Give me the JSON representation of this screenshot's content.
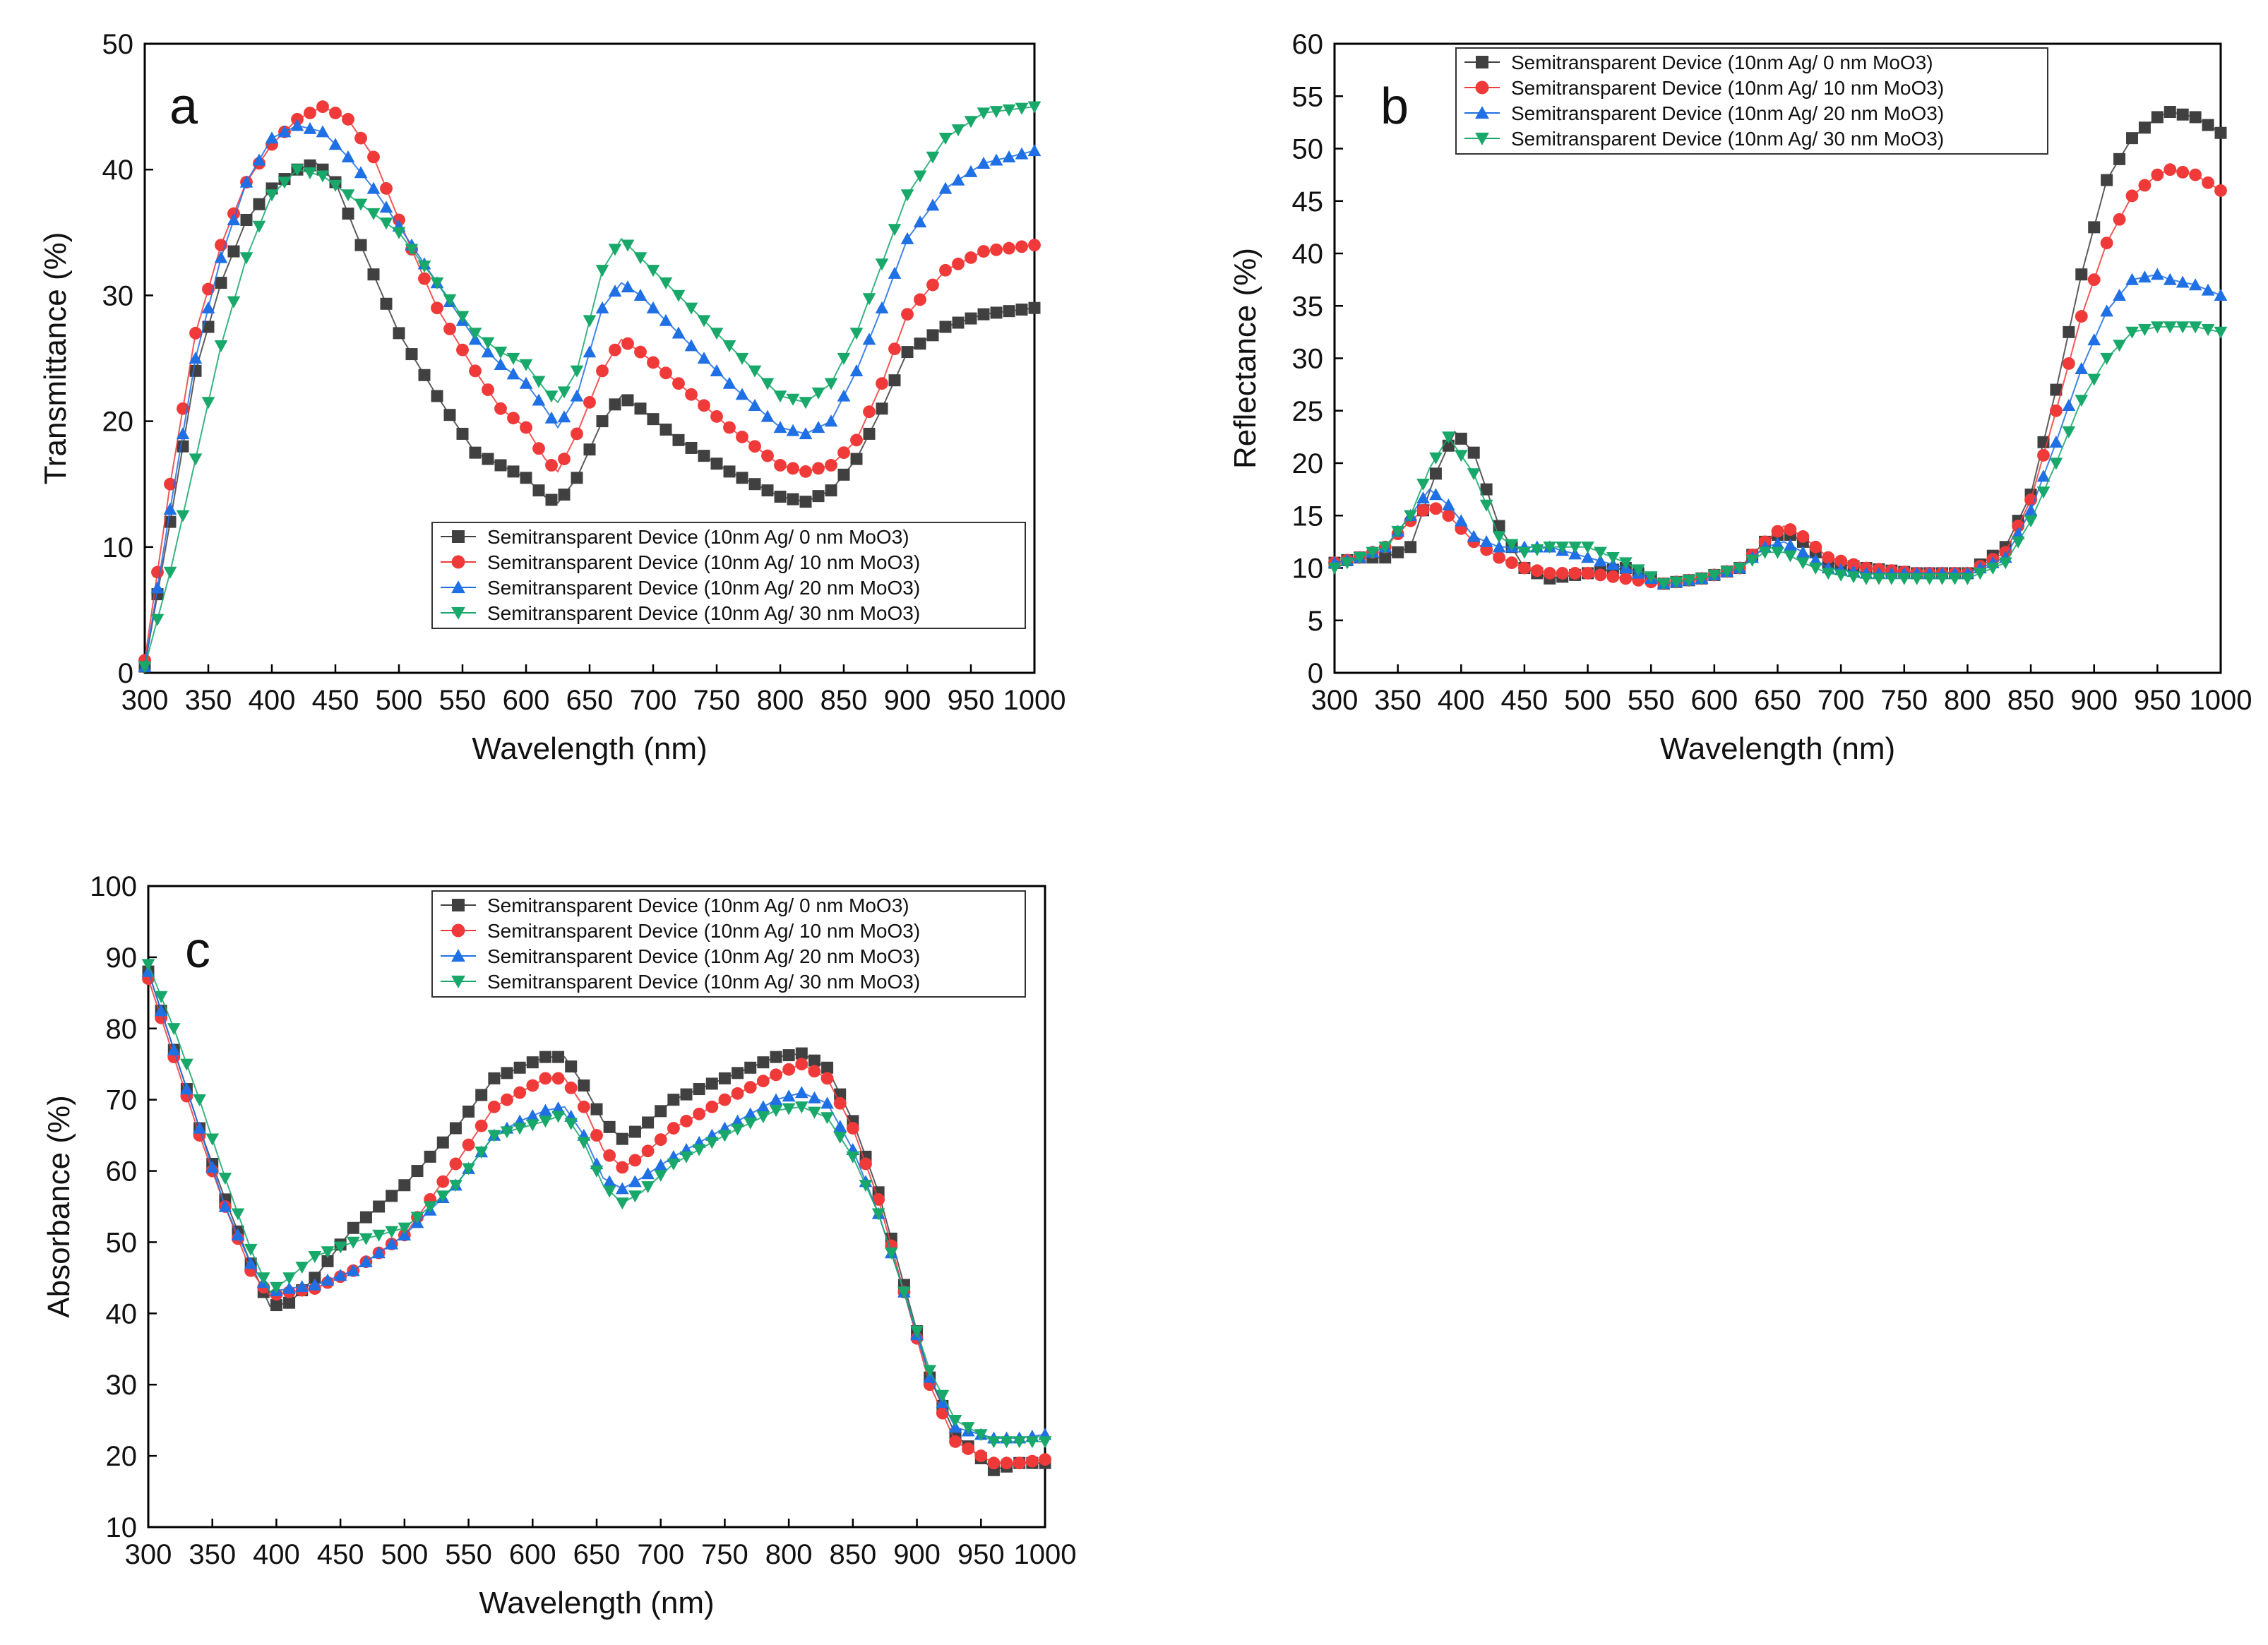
{
  "figure": {
    "colors": {
      "s0": "#404040",
      "s10": "#f03a3a",
      "s20": "#1f6fe5",
      "s30": "#17a86a"
    }
  },
  "legend_labels": [
    "Semitransparent Device (10nm Ag/ 0 nm MoO3)",
    "Semitransparent Device (10nm Ag/ 10 nm MoO3)",
    "Semitransparent Device (10nm Ag/ 20 nm MoO3)",
    "Semitransparent Device (10nm Ag/ 30 nm MoO3)"
  ],
  "chart_data": [
    {
      "id": "a",
      "type": "scatter",
      "panel_label": "a",
      "xlabel": "Wavelength (nm)",
      "ylabel": "Transmittance (%)",
      "xlim": [
        300,
        1000
      ],
      "ylim": [
        0,
        50
      ],
      "xticks": [
        300,
        350,
        400,
        450,
        500,
        550,
        600,
        650,
        700,
        750,
        800,
        850,
        900,
        950,
        1000
      ],
      "yticks": [
        0,
        10,
        20,
        30,
        40,
        50
      ],
      "legend_position": "lower-right",
      "series": [
        {
          "name": "Semitransparent Device (10nm Ag/ 0 nm MoO3)",
          "marker": "square",
          "color": "#404040",
          "x": [
            300,
            320,
            340,
            360,
            380,
            400,
            420,
            435,
            450,
            470,
            500,
            530,
            560,
            580,
            600,
            615,
            625,
            640,
            660,
            675,
            690,
            720,
            760,
            800,
            820,
            840,
            860,
            880,
            900,
            930,
            960,
            1000
          ],
          "y": [
            0.5,
            12,
            24,
            31,
            36,
            38.5,
            40,
            40.5,
            39,
            34,
            27,
            22,
            17.5,
            16.5,
            15.5,
            14,
            13.5,
            15.5,
            20,
            22,
            21,
            18.5,
            16,
            14,
            13.6,
            14.5,
            17,
            21,
            25.5,
            27.5,
            28.5,
            29
          ]
        },
        {
          "name": "Semitransparent Device (10nm Ag/ 10 nm MoO3)",
          "marker": "circle",
          "color": "#f03a3a",
          "x": [
            300,
            320,
            340,
            360,
            380,
            400,
            420,
            440,
            460,
            480,
            500,
            530,
            560,
            580,
            600,
            615,
            625,
            640,
            660,
            675,
            690,
            720,
            760,
            800,
            820,
            840,
            860,
            880,
            900,
            930,
            960,
            1000
          ],
          "y": [
            1,
            15,
            27,
            34,
            39,
            42,
            44,
            45,
            44,
            41,
            36,
            29,
            24,
            21,
            19.5,
            17,
            16,
            19,
            24,
            26.5,
            25.5,
            23,
            19.5,
            16.5,
            16,
            16.5,
            18.5,
            23,
            28.5,
            32,
            33.5,
            34
          ]
        },
        {
          "name": "Semitransparent Device (10nm Ag/ 20 nm MoO3)",
          "marker": "triangle-up",
          "color": "#1f6fe5",
          "x": [
            300,
            320,
            340,
            360,
            380,
            400,
            420,
            440,
            460,
            480,
            500,
            530,
            560,
            580,
            600,
            615,
            625,
            640,
            660,
            675,
            690,
            720,
            760,
            800,
            820,
            840,
            860,
            880,
            900,
            930,
            960,
            1000
          ],
          "y": [
            0.5,
            13,
            25,
            33,
            39,
            42.5,
            43.5,
            43,
            41,
            38.5,
            35.5,
            31,
            26.5,
            24.5,
            23,
            21,
            19.5,
            22,
            29,
            31,
            30,
            27,
            23,
            19.5,
            19,
            20,
            24,
            29,
            34.5,
            38.5,
            40.5,
            41.5
          ]
        },
        {
          "name": "Semitransparent Device (10nm Ag/ 30 nm MoO3)",
          "marker": "triangle-down",
          "color": "#17a86a",
          "x": [
            300,
            320,
            340,
            360,
            380,
            400,
            420,
            440,
            460,
            480,
            500,
            530,
            560,
            580,
            600,
            615,
            625,
            640,
            660,
            675,
            690,
            720,
            760,
            800,
            820,
            840,
            860,
            880,
            900,
            930,
            960,
            1000
          ],
          "y": [
            0.5,
            8,
            17,
            26,
            33,
            38,
            40,
            39.5,
            38,
            36.5,
            35,
            31,
            27,
            25.5,
            24.5,
            22.5,
            21.5,
            24,
            32,
            34.5,
            33,
            30,
            26,
            22,
            21.5,
            23,
            27,
            32.5,
            38,
            42.5,
            44.5,
            45
          ]
        }
      ]
    },
    {
      "id": "b",
      "type": "scatter",
      "panel_label": "b",
      "xlabel": "Wavelength (nm)",
      "ylabel": "Reflectance (%)",
      "xlim": [
        300,
        1000
      ],
      "ylim": [
        0,
        60
      ],
      "xticks": [
        300,
        350,
        400,
        450,
        500,
        550,
        600,
        650,
        700,
        750,
        800,
        850,
        900,
        950,
        1000
      ],
      "yticks": [
        0,
        5,
        10,
        15,
        20,
        25,
        30,
        35,
        40,
        45,
        50,
        55,
        60
      ],
      "legend_position": "top-left",
      "series": [
        {
          "name": "Semitransparent Device (10nm Ag/ 0 nm MoO3)",
          "marker": "square",
          "color": "#404040",
          "x": [
            300,
            320,
            340,
            360,
            380,
            395,
            410,
            430,
            450,
            470,
            500,
            530,
            560,
            590,
            620,
            640,
            655,
            670,
            690,
            720,
            760,
            800,
            830,
            850,
            870,
            890,
            910,
            930,
            950,
            960,
            980,
            1000
          ],
          "y": [
            10.5,
            11,
            11,
            12,
            19,
            23,
            21,
            14,
            10,
            9,
            9.5,
            10,
            8.5,
            9,
            10,
            12.5,
            13.5,
            12.5,
            10.5,
            10,
            9.5,
            9.5,
            12,
            17,
            27,
            38,
            47,
            51,
            53,
            53.5,
            53,
            51.5
          ]
        },
        {
          "name": "Semitransparent Device (10nm Ag/ 10 nm MoO3)",
          "marker": "circle",
          "color": "#f03a3a",
          "x": [
            300,
            320,
            340,
            360,
            375,
            390,
            410,
            430,
            450,
            470,
            500,
            530,
            560,
            590,
            620,
            640,
            655,
            670,
            690,
            720,
            760,
            800,
            830,
            850,
            870,
            890,
            910,
            930,
            950,
            960,
            980,
            1000
          ],
          "y": [
            10.5,
            11,
            12,
            14.5,
            16,
            15,
            12.5,
            11,
            10,
            9.5,
            9.5,
            9,
            8.5,
            9,
            10,
            12.5,
            14,
            13,
            11,
            10,
            9.5,
            9.5,
            11.5,
            16.5,
            25,
            34,
            41,
            45.5,
            47.5,
            48,
            47.5,
            46
          ]
        },
        {
          "name": "Semitransparent Device (10nm Ag/ 20 nm MoO3)",
          "marker": "triangle-up",
          "color": "#1f6fe5",
          "x": [
            300,
            320,
            340,
            360,
            375,
            390,
            410,
            430,
            450,
            470,
            500,
            530,
            560,
            590,
            620,
            640,
            655,
            670,
            690,
            720,
            760,
            800,
            830,
            850,
            870,
            890,
            910,
            930,
            950,
            960,
            980,
            1000
          ],
          "y": [
            10.5,
            11,
            12,
            15,
            17.5,
            16,
            13,
            12,
            12,
            12,
            11,
            10,
            8.5,
            9,
            10,
            12,
            12.5,
            11.5,
            10,
            9.5,
            9.5,
            9.5,
            11,
            15.5,
            22,
            29,
            34.5,
            37.5,
            38,
            37.5,
            37,
            36
          ]
        },
        {
          "name": "Semitransparent Device (10nm Ag/ 30 nm MoO3)",
          "marker": "triangle-down",
          "color": "#17a86a",
          "x": [
            300,
            320,
            340,
            360,
            375,
            390,
            410,
            430,
            450,
            470,
            500,
            530,
            560,
            590,
            620,
            640,
            655,
            670,
            690,
            720,
            760,
            800,
            830,
            850,
            870,
            890,
            910,
            930,
            950,
            960,
            980,
            1000
          ],
          "y": [
            10,
            11,
            12,
            15,
            19.5,
            22.5,
            19,
            13,
            11.5,
            12,
            12,
            10.5,
            8.5,
            9,
            10,
            11.5,
            11.5,
            10.5,
            9.5,
            9,
            9,
            9,
            10.5,
            14.5,
            20,
            26,
            30,
            32.5,
            33,
            33,
            33,
            32.5
          ]
        }
      ]
    },
    {
      "id": "c",
      "type": "scatter",
      "panel_label": "c",
      "xlabel": "Wavelength (nm)",
      "ylabel": "Absorbance (%)",
      "xlim": [
        300,
        1000
      ],
      "ylim": [
        10,
        100
      ],
      "xticks": [
        300,
        350,
        400,
        450,
        500,
        550,
        600,
        650,
        700,
        750,
        800,
        850,
        900,
        950,
        1000
      ],
      "yticks": [
        10,
        20,
        30,
        40,
        50,
        60,
        70,
        80,
        90,
        100
      ],
      "legend_position": "top-right",
      "series": [
        {
          "name": "Semitransparent Device (10nm Ag/ 0 nm MoO3)",
          "marker": "square",
          "color": "#404040",
          "x": [
            300,
            320,
            340,
            360,
            380,
            395,
            410,
            430,
            460,
            500,
            540,
            570,
            590,
            610,
            625,
            640,
            655,
            670,
            685,
            710,
            750,
            790,
            810,
            830,
            850,
            870,
            890,
            910,
            930,
            960,
            980,
            1000
          ],
          "y": [
            88,
            77,
            66,
            56,
            47,
            41,
            41.5,
            45,
            52,
            58,
            66,
            73,
            74.5,
            76,
            76,
            72,
            67,
            64.5,
            66,
            70,
            73,
            76,
            76.5,
            74.5,
            67,
            57,
            44,
            31,
            23,
            18,
            19,
            19
          ]
        },
        {
          "name": "Semitransparent Device (10nm Ag/ 10 nm MoO3)",
          "marker": "circle",
          "color": "#f03a3a",
          "x": [
            300,
            320,
            340,
            360,
            380,
            395,
            410,
            430,
            460,
            500,
            540,
            570,
            590,
            610,
            625,
            640,
            655,
            670,
            685,
            710,
            750,
            790,
            810,
            830,
            850,
            870,
            890,
            910,
            930,
            960,
            980,
            1000
          ],
          "y": [
            87,
            76,
            65,
            55,
            46,
            42.5,
            43,
            43.5,
            46,
            51,
            61,
            69,
            71,
            73,
            73,
            69,
            63,
            60.5,
            62,
            66,
            70,
            73.5,
            75,
            73,
            66,
            56,
            43,
            30,
            22,
            19,
            19,
            19.5
          ]
        },
        {
          "name": "Semitransparent Device (10nm Ag/ 20 nm MoO3)",
          "marker": "triangle-up",
          "color": "#1f6fe5",
          "x": [
            300,
            320,
            340,
            360,
            380,
            395,
            410,
            430,
            460,
            500,
            540,
            570,
            590,
            610,
            625,
            640,
            655,
            670,
            685,
            710,
            750,
            790,
            810,
            830,
            850,
            870,
            890,
            910,
            930,
            960,
            980,
            1000
          ],
          "y": [
            88,
            77,
            66,
            55,
            47,
            43,
            43.5,
            44,
            46,
            51,
            58,
            65,
            67,
            68.5,
            69,
            65,
            59,
            57.5,
            59,
            62,
            66,
            70,
            71,
            69.5,
            63,
            54,
            43,
            31,
            24,
            22.5,
            22.5,
            23
          ]
        },
        {
          "name": "Semitransparent Device (10nm Ag/ 30 nm MoO3)",
          "marker": "triangle-down",
          "color": "#17a86a",
          "x": [
            300,
            320,
            340,
            360,
            380,
            395,
            410,
            430,
            460,
            500,
            540,
            570,
            590,
            610,
            625,
            640,
            655,
            670,
            685,
            710,
            750,
            790,
            810,
            830,
            850,
            870,
            890,
            910,
            930,
            960,
            980,
            1000
          ],
          "y": [
            89,
            80,
            70,
            59,
            49,
            43,
            45,
            48,
            50,
            52,
            58,
            65,
            66,
            67,
            68,
            64,
            58,
            55.5,
            57,
            61,
            65,
            68.5,
            69,
            67.5,
            62,
            54,
            43,
            32,
            25,
            22,
            22,
            22
          ]
        }
      ]
    }
  ]
}
